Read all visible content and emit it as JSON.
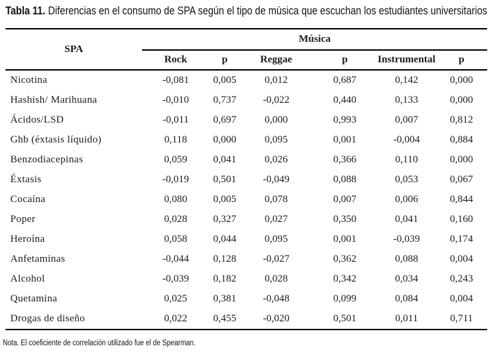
{
  "title": {
    "label": "Tabla 11.",
    "text": "Diferencias en el consumo de SPA según el tipo de música que escuchan los estudiantes universitarios"
  },
  "table": {
    "spa_header": "SPA",
    "group_header": "Música",
    "columns": [
      "Rock",
      "p",
      "Reggae",
      "p",
      "Instrumental",
      "p"
    ],
    "rows": [
      {
        "spa": "Nicotina",
        "values": [
          "-0,081",
          "0,005",
          "0,012",
          "0,687",
          "0,142",
          "0,000"
        ]
      },
      {
        "spa": "Hashish/ Marihuana",
        "values": [
          "-0,010",
          "0,737",
          "-0,022",
          "0,440",
          "0,133",
          "0,000"
        ]
      },
      {
        "spa": "Ácidos/LSD",
        "values": [
          "-0,011",
          "0,697",
          "0,000",
          "0,993",
          "0,007",
          "0,812"
        ]
      },
      {
        "spa": "Ghb (éxtasis líquido)",
        "values": [
          "0,118",
          "0,000",
          "0,095",
          "0,001",
          "-0,004",
          "0,884"
        ]
      },
      {
        "spa": "Benzodiacepinas",
        "values": [
          "0,059",
          "0,041",
          "0,026",
          "0,366",
          "0,110",
          "0,000"
        ]
      },
      {
        "spa": "Éxtasis",
        "values": [
          "-0,019",
          "0,501",
          "-0,049",
          "0,088",
          "0,053",
          "0,067"
        ]
      },
      {
        "spa": "Cocaína",
        "values": [
          "0,080",
          "0,005",
          "0,078",
          "0,007",
          "0,006",
          "0,844"
        ]
      },
      {
        "spa": "Poper",
        "values": [
          "0,028",
          "0,327",
          "0,027",
          "0,350",
          "0,041",
          "0,160"
        ]
      },
      {
        "spa": "Heroína",
        "values": [
          "0,058",
          "0,044",
          "0,095",
          "0,001",
          "-0,039",
          "0,174"
        ]
      },
      {
        "spa": "Anfetaminas",
        "values": [
          "-0,044",
          "0,128",
          "-0,027",
          "0,362",
          "0,088",
          "0,004"
        ]
      },
      {
        "spa": "Alcohol",
        "values": [
          "-0,039",
          "0,182",
          "0,028",
          "0,342",
          "0,034",
          "0,243"
        ]
      },
      {
        "spa": "Quetamina",
        "values": [
          "0,025",
          "0,381",
          "-0,048",
          "0,099",
          "0,084",
          "0,004"
        ]
      },
      {
        "spa": "Drogas de diseño",
        "values": [
          "0,022",
          "0,455",
          "-0,020",
          "0,501",
          "0,011",
          "0,711"
        ]
      }
    ]
  },
  "note": "Nota. El coeficiente de correlación utilizado fue el de Spearman.",
  "colors": {
    "text": "#1c1c1c",
    "rule": "#000000",
    "background": "#ffffff"
  }
}
